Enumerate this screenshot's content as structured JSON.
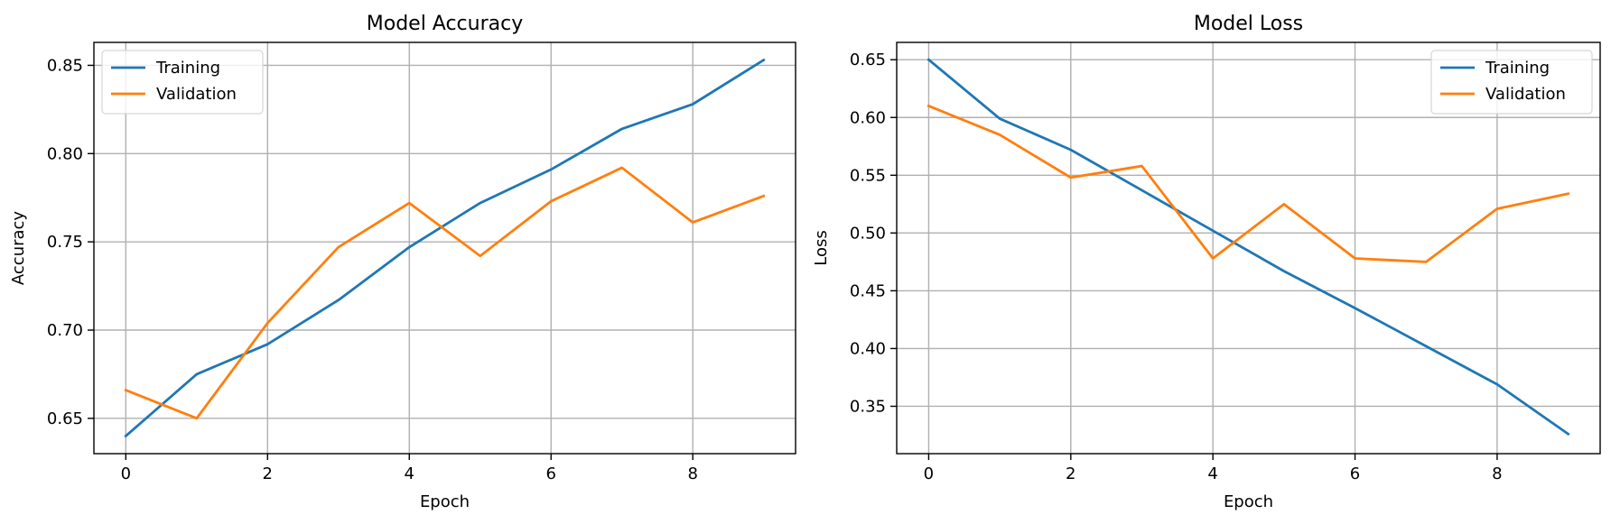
{
  "chart_data": [
    {
      "type": "line",
      "title": "Model Accuracy",
      "xlabel": "Epoch",
      "ylabel": "Accuracy",
      "x": [
        0,
        1,
        2,
        3,
        4,
        5,
        6,
        7,
        8,
        9
      ],
      "xlim": [
        -0.45,
        9.45
      ],
      "ylim": [
        0.63,
        0.863
      ],
      "xticks": [
        0,
        2,
        4,
        6,
        8
      ],
      "xtick_labels": [
        "0",
        "2",
        "4",
        "6",
        "8"
      ],
      "yticks": [
        0.65,
        0.7,
        0.75,
        0.8,
        0.85
      ],
      "ytick_labels": [
        "0.65",
        "0.70",
        "0.75",
        "0.80",
        "0.85"
      ],
      "grid": true,
      "legend_position": "upper-left",
      "series": [
        {
          "name": "Training",
          "color": "#1f77b4",
          "values": [
            0.64,
            0.675,
            0.692,
            0.717,
            0.747,
            0.772,
            0.791,
            0.814,
            0.828,
            0.853
          ]
        },
        {
          "name": "Validation",
          "color": "#ff7f0e",
          "values": [
            0.666,
            0.65,
            0.704,
            0.747,
            0.772,
            0.742,
            0.773,
            0.792,
            0.761,
            0.776
          ]
        }
      ]
    },
    {
      "type": "line",
      "title": "Model Loss",
      "xlabel": "Epoch",
      "ylabel": "Loss",
      "x": [
        0,
        1,
        2,
        3,
        4,
        5,
        6,
        7,
        8,
        9
      ],
      "xlim": [
        -0.45,
        9.45
      ],
      "ylim": [
        0.309,
        0.665
      ],
      "xticks": [
        0,
        2,
        4,
        6,
        8
      ],
      "xtick_labels": [
        "0",
        "2",
        "4",
        "6",
        "8"
      ],
      "yticks": [
        0.35,
        0.4,
        0.45,
        0.5,
        0.55,
        0.6,
        0.65
      ],
      "ytick_labels": [
        "0.35",
        "0.40",
        "0.45",
        "0.50",
        "0.55",
        "0.60",
        "0.65"
      ],
      "grid": true,
      "legend_position": "upper-right",
      "series": [
        {
          "name": "Training",
          "color": "#1f77b4",
          "values": [
            0.65,
            0.599,
            0.572,
            0.537,
            0.502,
            0.467,
            0.435,
            0.402,
            0.369,
            0.326
          ]
        },
        {
          "name": "Validation",
          "color": "#ff7f0e",
          "values": [
            0.61,
            0.585,
            0.548,
            0.558,
            0.478,
            0.525,
            0.478,
            0.475,
            0.521,
            0.534
          ]
        }
      ]
    }
  ]
}
